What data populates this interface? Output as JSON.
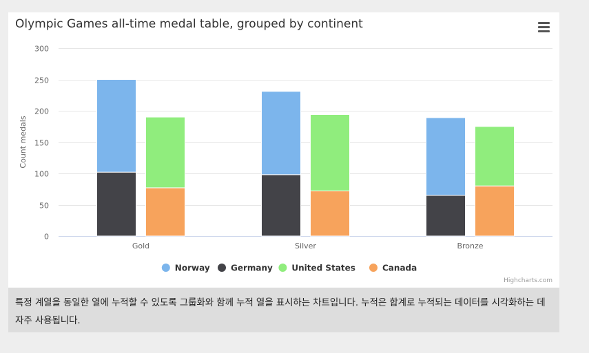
{
  "chart_data": {
    "type": "bar",
    "stacking": "grouped-stacked",
    "title": "Olympic Games all-time medal table, grouped by continent",
    "xlabel": "",
    "ylabel": "Count medals",
    "categories": [
      "Gold",
      "Silver",
      "Bronze"
    ],
    "ylim": [
      0,
      300
    ],
    "yticks": [
      0,
      50,
      100,
      150,
      200,
      250,
      300
    ],
    "grid": true,
    "legend_position": "bottom",
    "series": [
      {
        "name": "Norway",
        "stack": "Europe",
        "color": "#7cb5ec",
        "values": [
          148,
          133,
          124
        ]
      },
      {
        "name": "Germany",
        "stack": "Europe",
        "color": "#434348",
        "values": [
          102,
          98,
          65
        ]
      },
      {
        "name": "United States",
        "stack": "North America",
        "color": "#90ed7d",
        "values": [
          113,
          122,
          95
        ]
      },
      {
        "name": "Canada",
        "stack": "North America",
        "color": "#f7a35c",
        "values": [
          77,
          72,
          80
        ]
      }
    ]
  },
  "menu_icon": "hamburger-menu-icon",
  "credits": "Highcharts.com",
  "description": "특정 계열을 동일한 열에 누적할 수 있도록 그룹화와 함께 누적 열을 표시하는 차트입니다. 누적은 합계로 누적되는 데이터를 시각화하는 데 자주 사용됩니다."
}
